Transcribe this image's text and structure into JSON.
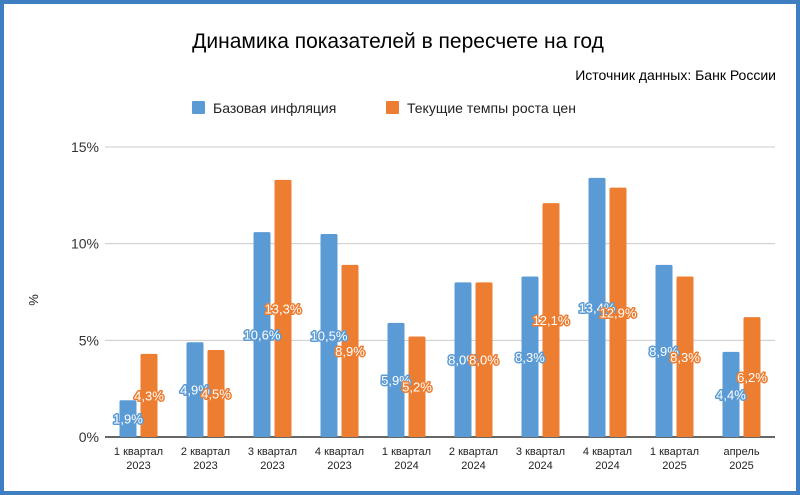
{
  "chart_data": {
    "type": "bar",
    "title": "Динамика показателей в пересчете на год",
    "subtitle": "Источник данных: Банк России",
    "ylabel": "%",
    "xlabel": "",
    "ylim": [
      0,
      15
    ],
    "yticks": [
      "0%",
      "5%",
      "10%",
      "15%"
    ],
    "grid": true,
    "legend_position": "top",
    "categories": [
      [
        "1 квартал",
        "2023"
      ],
      [
        "2 квартал",
        "2023"
      ],
      [
        "3 квартал",
        "2023"
      ],
      [
        "4 квартал",
        "2023"
      ],
      [
        "1 квартал",
        "2024"
      ],
      [
        "2 квартал",
        "2024"
      ],
      [
        "3 квартал",
        "2024"
      ],
      [
        "4 квартал",
        "2024"
      ],
      [
        "1 квартал",
        "2025"
      ],
      [
        "апрель",
        "2025"
      ]
    ],
    "series": [
      {
        "name": "Базовая инфляция",
        "color": "#5b9bd5",
        "values": [
          1.9,
          4.9,
          10.6,
          10.5,
          5.9,
          8.0,
          8.3,
          13.4,
          8.9,
          4.4
        ],
        "labels": [
          "1,9%",
          "4,9%",
          "10,6%",
          "10,5%",
          "5,9%",
          "8,0%",
          "8,3%",
          "13,4%",
          "8,9%",
          "4,4%"
        ]
      },
      {
        "name": "Текущие темпы роста цен",
        "color": "#ed7d31",
        "values": [
          4.3,
          4.5,
          13.3,
          8.9,
          5.2,
          8.0,
          12.1,
          12.9,
          8.3,
          6.2
        ],
        "labels": [
          "4,3%",
          "4,5%",
          "13,3%",
          "8,9%",
          "5,2%",
          "8,0%",
          "12,1%",
          "12,9%",
          "8,3%",
          "6,2%"
        ]
      }
    ]
  }
}
